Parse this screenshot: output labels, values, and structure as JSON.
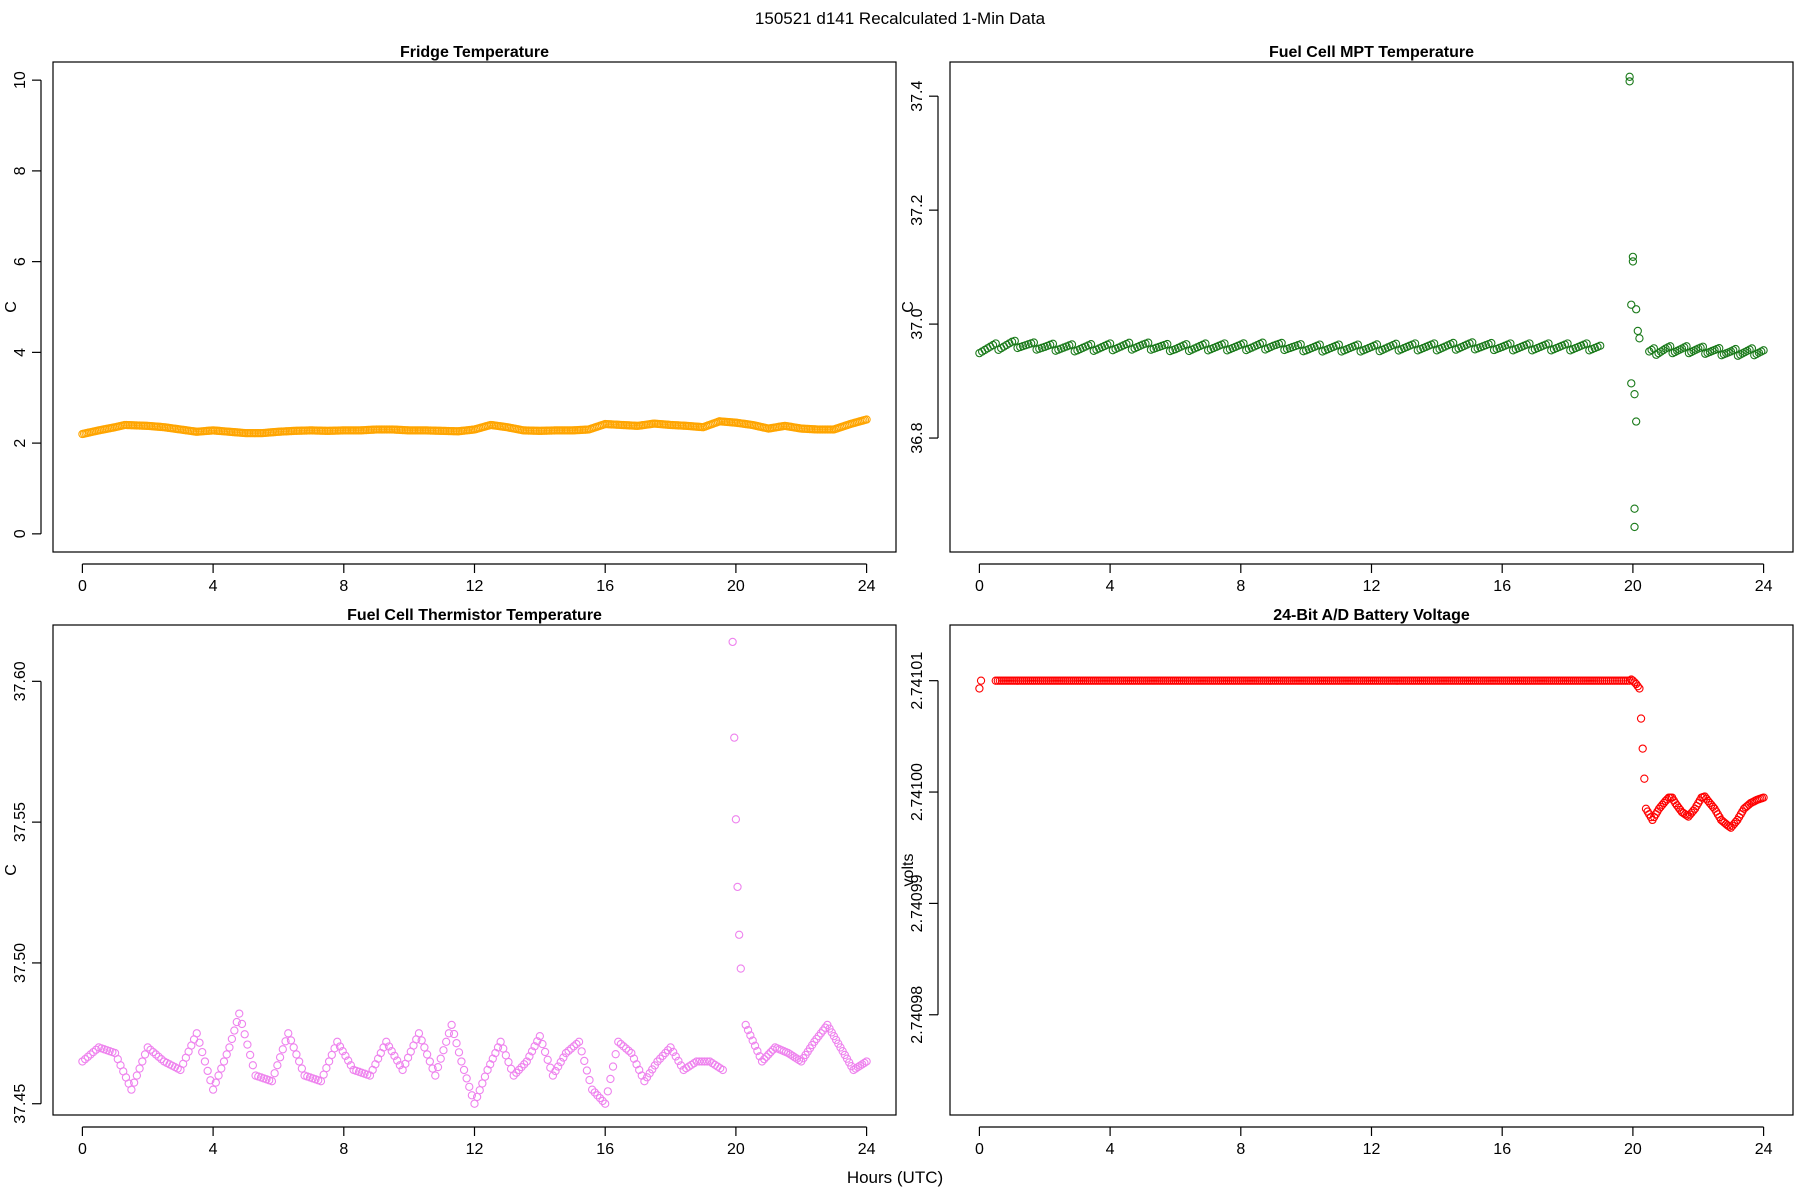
{
  "figure": {
    "title": "150521   d141   Recalculated 1-Min Data",
    "shared_xlabel": "Hours (UTC)"
  },
  "chart_data": [
    {
      "type": "scatter",
      "title": "Fridge Temperature",
      "ylabel": "C",
      "xlabel": "",
      "xlim": [
        -0.9,
        24.9
      ],
      "ylim": [
        -0.4,
        10.4
      ],
      "xticks": [
        0,
        4,
        8,
        12,
        16,
        20,
        24
      ],
      "yticks": [
        0,
        2,
        4,
        6,
        8,
        10
      ],
      "ytick_labels": [
        "0",
        "2",
        "4",
        "6",
        "8",
        "10"
      ],
      "color": "#ffa500",
      "series": [
        {
          "name": "Fridge Temperature",
          "x": [
            0,
            0.5,
            1.0,
            1.3,
            2.0,
            2.5,
            3.0,
            3.5,
            4.0,
            4.5,
            5.0,
            5.5,
            6.0,
            6.5,
            7.0,
            7.5,
            8.0,
            8.5,
            9.0,
            9.5,
            10.0,
            10.5,
            11.0,
            11.5,
            12.0,
            12.5,
            13.0,
            13.5,
            14.0,
            14.5,
            15.0,
            15.5,
            16.0,
            16.5,
            17.0,
            17.5,
            18.0,
            18.5,
            19.0,
            19.5,
            20.0,
            20.5,
            21.0,
            21.5,
            22.0,
            22.5,
            23.0,
            23.5,
            24.0
          ],
          "y": [
            2.2,
            2.28,
            2.35,
            2.4,
            2.38,
            2.35,
            2.3,
            2.25,
            2.28,
            2.25,
            2.22,
            2.22,
            2.25,
            2.27,
            2.28,
            2.27,
            2.28,
            2.28,
            2.3,
            2.3,
            2.28,
            2.28,
            2.27,
            2.26,
            2.3,
            2.4,
            2.35,
            2.28,
            2.27,
            2.28,
            2.28,
            2.3,
            2.42,
            2.4,
            2.38,
            2.43,
            2.4,
            2.38,
            2.35,
            2.48,
            2.45,
            2.4,
            2.32,
            2.38,
            2.32,
            2.3,
            2.3,
            2.42,
            2.52
          ]
        }
      ]
    },
    {
      "type": "scatter",
      "title": "Fuel Cell MPT Temperature",
      "ylabel": "C",
      "xlabel": "",
      "xlim": [
        -0.9,
        24.9
      ],
      "ylim": [
        36.6,
        37.46
      ],
      "xticks": [
        0,
        4,
        8,
        12,
        16,
        20,
        24
      ],
      "yticks": [
        36.8,
        37.0,
        37.2,
        37.4
      ],
      "ytick_labels": [
        "36.8",
        "37.0",
        "37.2",
        "37.4"
      ],
      "color": "#1a7a1a",
      "series": [
        {
          "name": "Fuel Cell MPT Temperature",
          "x": [
            0,
            1,
            2,
            3,
            4,
            5,
            6,
            7,
            8,
            9,
            10,
            11,
            12,
            13,
            14,
            15,
            16,
            17,
            18,
            19,
            19.9,
            19.9,
            19.95,
            19.95,
            20.0,
            20.0,
            20.05,
            20.05,
            20.05,
            20.1,
            20.1,
            20.15,
            20.2,
            20.5,
            21,
            22,
            23,
            24
          ],
          "y": [
            36.955,
            36.965,
            36.96,
            36.958,
            36.96,
            36.962,
            36.958,
            36.96,
            36.96,
            36.962,
            36.958,
            36.958,
            36.958,
            36.96,
            36.96,
            36.962,
            36.96,
            36.96,
            36.96,
            36.96,
            37.43,
            37.42,
            37.04,
            36.9,
            37.12,
            37.11,
            36.875,
            36.64,
            36.67,
            36.835,
            37.03,
            36.99,
            36.975,
            36.95,
            36.955,
            36.955,
            36.95,
            36.952
          ]
        }
      ]
    },
    {
      "type": "scatter",
      "title": "Fuel Cell Thermistor Temperature",
      "ylabel": "C",
      "xlabel": "",
      "xlim": [
        -0.9,
        24.9
      ],
      "ylim": [
        37.446,
        37.62
      ],
      "xticks": [
        0,
        4,
        8,
        12,
        16,
        20,
        24
      ],
      "yticks": [
        37.45,
        37.5,
        37.55,
        37.6
      ],
      "ytick_labels": [
        "37.45",
        "37.50",
        "37.55",
        "37.60"
      ],
      "color": "#ee82ee",
      "series": [
        {
          "name": "Fuel Cell Thermistor Temperature",
          "x": [
            0,
            0.5,
            1.0,
            1.5,
            2.0,
            2.5,
            3.0,
            3.5,
            4.0,
            4.5,
            4.8,
            5.3,
            5.8,
            6.3,
            6.8,
            7.3,
            7.8,
            8.3,
            8.8,
            9.3,
            9.8,
            10.3,
            10.8,
            11.3,
            11.6,
            12.0,
            12.4,
            12.8,
            13.2,
            13.6,
            14.0,
            14.4,
            14.8,
            15.2,
            15.6,
            16.0,
            16.4,
            16.8,
            17.2,
            17.6,
            18.0,
            18.4,
            18.8,
            19.2,
            19.6,
            19.9,
            19.95,
            20.0,
            20.05,
            20.1,
            20.15,
            20.3,
            20.8,
            21.2,
            21.6,
            22.0,
            22.4,
            22.8,
            23.2,
            23.6,
            24.0
          ],
          "y": [
            37.465,
            37.47,
            37.468,
            37.455,
            37.47,
            37.465,
            37.462,
            37.475,
            37.455,
            37.47,
            37.482,
            37.46,
            37.458,
            37.475,
            37.46,
            37.458,
            37.472,
            37.462,
            37.46,
            37.472,
            37.462,
            37.475,
            37.46,
            37.478,
            37.465,
            37.45,
            37.462,
            37.472,
            37.46,
            37.465,
            37.474,
            37.46,
            37.468,
            37.472,
            37.455,
            37.45,
            37.472,
            37.468,
            37.458,
            37.465,
            37.47,
            37.462,
            37.465,
            37.465,
            37.462,
            37.614,
            37.58,
            37.551,
            37.527,
            37.51,
            37.498,
            37.478,
            37.465,
            37.47,
            37.468,
            37.465,
            37.472,
            37.478,
            37.47,
            37.462,
            37.465
          ]
        }
      ]
    },
    {
      "type": "scatter",
      "title": "24-Bit A/D Battery Voltage",
      "ylabel": "volts",
      "xlabel": "",
      "xlim": [
        -0.9,
        24.9
      ],
      "ylim": [
        2.740971,
        2.741015
      ],
      "xticks": [
        0,
        4,
        8,
        12,
        16,
        20,
        24
      ],
      "yticks": [
        2.74098,
        2.74099,
        2.741,
        2.74101
      ],
      "ytick_labels": [
        "2.74098",
        "2.74099",
        "2.74100",
        "2.74101"
      ],
      "color": "#ff0000",
      "series": [
        {
          "name": "24-Bit A/D Battery Voltage",
          "x": [
            0,
            0.05,
            0.5,
            1,
            2,
            3,
            4,
            5,
            6,
            7,
            8,
            9,
            10,
            11,
            12,
            13,
            14,
            15,
            16,
            17,
            18,
            19,
            19.9,
            19.95,
            20.0,
            20.1,
            20.2,
            20.4,
            20.6,
            20.8,
            21.0,
            21.1,
            21.2,
            21.3,
            21.5,
            21.7,
            21.9,
            22.0,
            22.1,
            22.2,
            22.3,
            22.5,
            22.7,
            22.9,
            23.0,
            23.2,
            23.4,
            23.6,
            23.8,
            24.0
          ],
          "y": [
            2.7410093,
            2.74101,
            2.74101,
            2.74101,
            2.74101,
            2.74101,
            2.74101,
            2.74101,
            2.74101,
            2.74101,
            2.74101,
            2.74101,
            2.74101,
            2.74101,
            2.74101,
            2.74101,
            2.74101,
            2.74101,
            2.74101,
            2.74101,
            2.74101,
            2.74101,
            2.74101,
            2.7410101,
            2.74101,
            2.7410097,
            2.7410093,
            2.7409985,
            2.7409975,
            2.7409985,
            2.7409992,
            2.7409995,
            2.7409995,
            2.740999,
            2.7409982,
            2.7409978,
            2.7409985,
            2.740999,
            2.7409995,
            2.7409996,
            2.7409992,
            2.7409985,
            2.7409975,
            2.740997,
            2.7409968,
            2.7409975,
            2.7409985,
            2.740999,
            2.7409993,
            2.7409995
          ]
        }
      ]
    }
  ]
}
